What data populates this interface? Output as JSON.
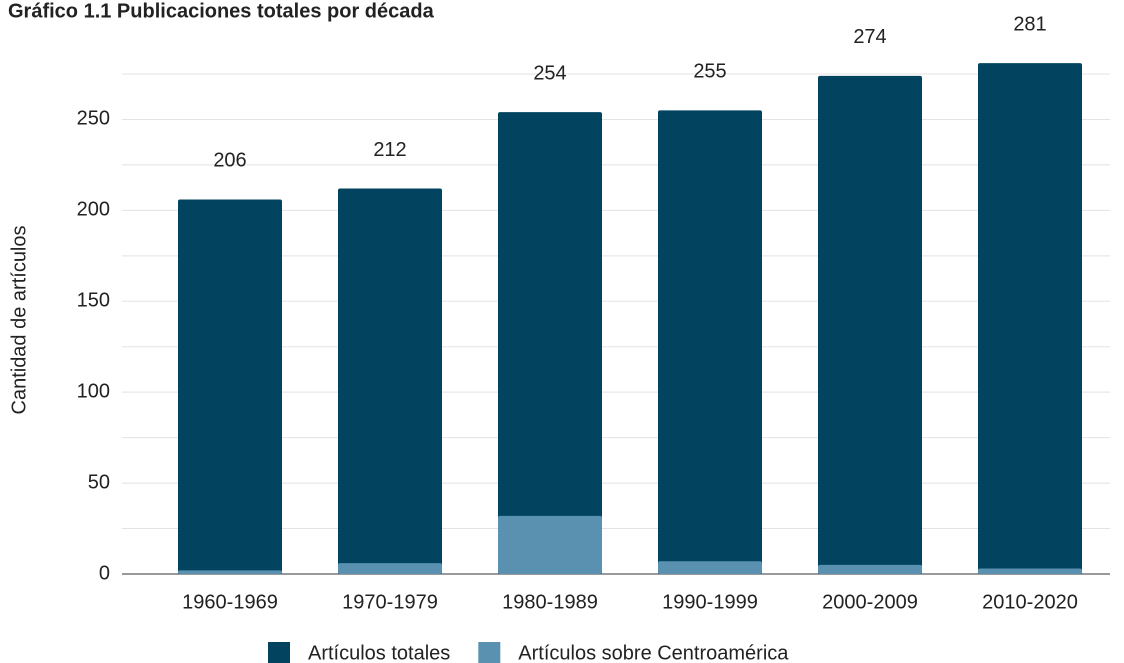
{
  "chart_data": {
    "type": "bar",
    "title": "Gráfico 1.1 Publicaciones totales por década",
    "y_label": "Cantidad de artículos",
    "categories": [
      "1960-1969",
      "1970-1979",
      "1980-1989",
      "1990-1999",
      "2000-2009",
      "2010-2020"
    ],
    "series": [
      {
        "name": "Artículos totales",
        "color": "#02445f",
        "values": [
          206,
          212,
          254,
          255,
          274,
          281
        ],
        "show_labels": true
      },
      {
        "name": "Artículos sobre Centroamérica",
        "color": "#5a91b0",
        "values": [
          2,
          6,
          32,
          7,
          5,
          3
        ],
        "show_labels": false
      }
    ],
    "overlap": true,
    "ylim": [
      0,
      275
    ],
    "yticks": [
      0,
      50,
      100,
      150,
      200,
      250
    ],
    "minor_yticks": [
      25,
      75,
      125,
      175,
      225,
      275
    ],
    "grid": true,
    "legend": "bottom"
  }
}
